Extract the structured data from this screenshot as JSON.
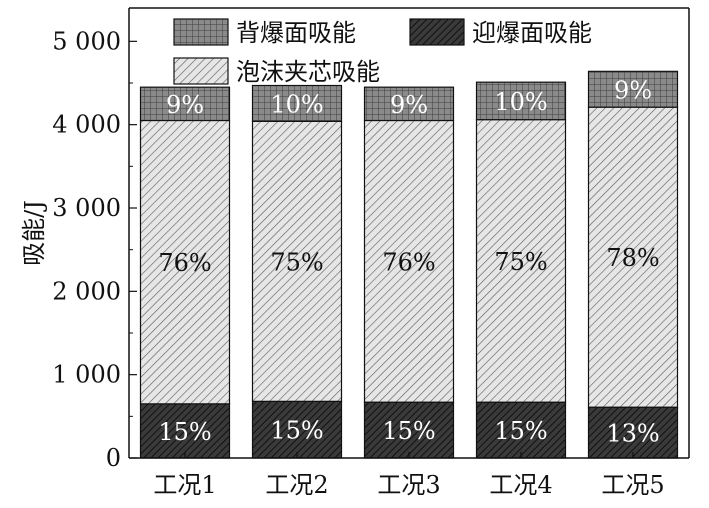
{
  "chart_data": {
    "type": "bar",
    "stacked": true,
    "categories": [
      "工况1",
      "工况2",
      "工况3",
      "工况4",
      "工况5"
    ],
    "series": [
      {
        "name": "迎爆面吸能",
        "values": [
          650,
          680,
          670,
          670,
          610
        ],
        "labels": [
          "15%",
          "15%",
          "15%",
          "15%",
          "13%"
        ],
        "fill": "#2e2e2e",
        "pattern": "dense-hatch",
        "label_color": "#ffffff"
      },
      {
        "name": "泡沫夹芯吸能",
        "values": [
          3400,
          3360,
          3380,
          3390,
          3600
        ],
        "labels": [
          "76%",
          "75%",
          "76%",
          "75%",
          "78%"
        ],
        "fill": "#d9d9d9",
        "pattern": "light-hatch",
        "label_color": "#111111"
      },
      {
        "name": "背爆面吸能",
        "values": [
          400,
          430,
          400,
          450,
          430
        ],
        "labels": [
          "9%",
          "10%",
          "9%",
          "10%",
          "9%"
        ],
        "fill": "#7c7c7c",
        "pattern": "grid",
        "label_color": "#ffffff"
      }
    ],
    "ylabel": "吸能/J",
    "xlabel": "",
    "ylim": [
      0,
      5400
    ],
    "yticks": [
      0,
      1000,
      2000,
      3000,
      4000,
      5000
    ],
    "ytick_labels": [
      "0",
      "1 000",
      "2 000",
      "3 000",
      "4 000",
      "5 000"
    ],
    "legend": {
      "placement": "top",
      "order": [
        "背爆面吸能",
        "迎爆面吸能",
        "泡沫夹芯吸能"
      ]
    },
    "grid": false
  }
}
